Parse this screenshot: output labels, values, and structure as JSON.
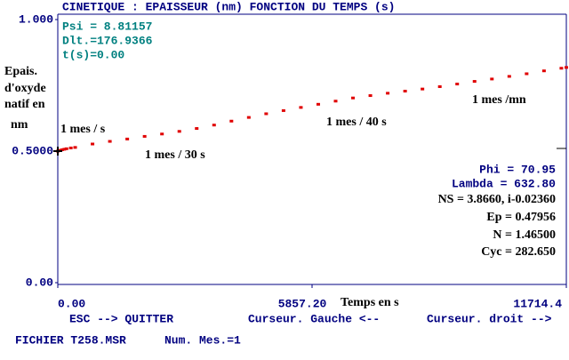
{
  "chart_data": {
    "type": "scatter",
    "title": "CINETIQUE : EPAISSEUR (nm) FONCTION DU TEMPS (s)",
    "ylabel_lines": [
      "Epais.",
      "d'oxyde",
      "natif en",
      "nm"
    ],
    "xlabel": "Temps en s",
    "status": [
      "Psi = 8.81157",
      "Dlt.=176.9366",
      "t(s)=0.00"
    ],
    "annotations": [
      "1 mes / s",
      "1 mes / 30 s",
      "1 mes / 40 s",
      "1 mes /mn"
    ],
    "info": [
      "Phi = 70.95",
      "Lambda = 632.80",
      "NS = 3.8660, i-0.02360",
      "Ep = 0.47956",
      "N = 1.46500",
      "Cyc = 282.650"
    ],
    "color": "#e00000",
    "xlim": [
      0,
      11714.4
    ],
    "xticks": [
      {
        "value": 0,
        "label": "0.00"
      },
      {
        "value": 5857.2,
        "label": "5857.20"
      },
      {
        "value": 11714.4,
        "label": "11714.4"
      }
    ],
    "ylim": [
      0,
      1
    ],
    "yticks": [
      {
        "value": 0,
        "label": "0.00"
      },
      {
        "value": 0.5,
        "label": "0.5000"
      },
      {
        "value": 1,
        "label": "1.000"
      }
    ],
    "x": [
      0,
      50,
      100,
      150,
      200,
      300,
      400,
      800,
      1200,
      1600,
      2000,
      2400,
      2800,
      3200,
      3600,
      4000,
      4400,
      4800,
      5200,
      5600,
      6000,
      6400,
      6800,
      7200,
      7600,
      8000,
      8400,
      8800,
      9200,
      9600,
      10000,
      10400,
      10800,
      11200,
      11600,
      11714
    ],
    "values": [
      0.5,
      0.503,
      0.505,
      0.507,
      0.509,
      0.512,
      0.514,
      0.527,
      0.537,
      0.546,
      0.556,
      0.565,
      0.575,
      0.586,
      0.599,
      0.614,
      0.628,
      0.642,
      0.654,
      0.666,
      0.678,
      0.69,
      0.702,
      0.711,
      0.72,
      0.728,
      0.736,
      0.745,
      0.755,
      0.765,
      0.774,
      0.784,
      0.794,
      0.805,
      0.815,
      0.818
    ]
  },
  "footer": {
    "keys": [
      "ESC --> QUITTER",
      "Curseur. Gauche <--",
      "Curseur. droit -->"
    ],
    "file": "FICHIER T258.MSR",
    "count": "Num. Mes.=1"
  }
}
